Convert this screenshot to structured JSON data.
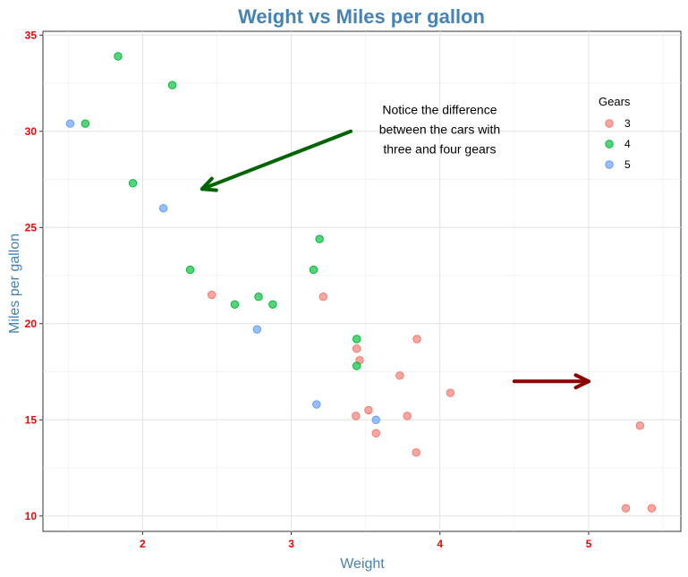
{
  "chart_data": {
    "type": "scatter",
    "title": "Weight vs Miles per gallon",
    "xlabel": "Weight",
    "ylabel": "Miles per gallon",
    "xlim": [
      1.33,
      5.62
    ],
    "ylim": [
      9.2,
      35.2
    ],
    "x_ticks": [
      2,
      3,
      4,
      5
    ],
    "y_ticks": [
      10,
      15,
      20,
      25,
      30,
      35
    ],
    "grid": true,
    "legend": {
      "title": "Gears",
      "position": "right-inside"
    },
    "series": [
      {
        "name": "3",
        "color": "#F8766D",
        "points": [
          [
            3.215,
            21.4
          ],
          [
            3.44,
            18.7
          ],
          [
            3.46,
            18.1
          ],
          [
            3.57,
            14.3
          ],
          [
            4.07,
            16.4
          ],
          [
            3.73,
            17.3
          ],
          [
            3.78,
            15.2
          ],
          [
            5.25,
            10.4
          ],
          [
            5.424,
            10.4
          ],
          [
            5.345,
            14.7
          ],
          [
            2.465,
            21.5
          ],
          [
            3.52,
            15.5
          ],
          [
            3.435,
            15.2
          ],
          [
            3.84,
            13.3
          ],
          [
            3.845,
            19.2
          ]
        ]
      },
      {
        "name": "4",
        "color": "#00BA38",
        "points": [
          [
            2.62,
            21.0
          ],
          [
            2.875,
            21.0
          ],
          [
            2.32,
            22.8
          ],
          [
            3.19,
            24.4
          ],
          [
            3.15,
            22.8
          ],
          [
            3.44,
            19.2
          ],
          [
            3.44,
            17.8
          ],
          [
            2.2,
            32.4
          ],
          [
            1.615,
            30.4
          ],
          [
            1.835,
            33.9
          ],
          [
            1.935,
            27.3
          ],
          [
            2.78,
            21.4
          ]
        ]
      },
      {
        "name": "5",
        "color": "#619CFF",
        "points": [
          [
            2.14,
            26.0
          ],
          [
            1.513,
            30.4
          ],
          [
            3.17,
            15.8
          ],
          [
            2.77,
            19.7
          ],
          [
            3.57,
            15.0
          ]
        ]
      }
    ],
    "annotations": {
      "text_lines": [
        "Notice the difference",
        "between the cars with",
        "three and four gears"
      ],
      "text_at": [
        3.998,
        30.9
      ],
      "arrows": [
        {
          "from": [
            3.4,
            30.0
          ],
          "to": [
            2.4,
            27.0
          ],
          "color": "#006400"
        },
        {
          "from": [
            4.5,
            17.0
          ],
          "to": [
            5.0,
            17.0
          ],
          "color": "#8B0000"
        }
      ]
    }
  }
}
